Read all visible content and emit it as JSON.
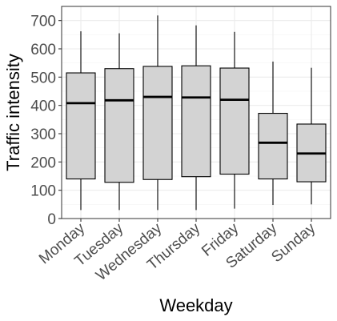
{
  "chart_data": {
    "type": "boxplot",
    "title": "",
    "xlabel": "Weekday",
    "ylabel": "Traffic intensity",
    "ylim": [
      0,
      750
    ],
    "yticks": [
      0,
      100,
      200,
      300,
      400,
      500,
      600,
      700
    ],
    "grid": true,
    "legend": "none",
    "box_fill": "#d3d3d3",
    "line_color": "#000000",
    "categories": [
      "Monday",
      "Tuesday",
      "Wednesday",
      "Thursday",
      "Friday",
      "Saturday",
      "Sunday"
    ],
    "boxes": [
      {
        "category": "Monday",
        "min": 30,
        "q1": 140,
        "median": 408,
        "q3": 515,
        "max": 662
      },
      {
        "category": "Tuesday",
        "min": 30,
        "q1": 128,
        "median": 418,
        "q3": 530,
        "max": 655
      },
      {
        "category": "Wednesday",
        "min": 30,
        "q1": 138,
        "median": 430,
        "q3": 538,
        "max": 718
      },
      {
        "category": "Thursday",
        "min": 30,
        "q1": 148,
        "median": 428,
        "q3": 540,
        "max": 683
      },
      {
        "category": "Friday",
        "min": 35,
        "q1": 157,
        "median": 420,
        "q3": 532,
        "max": 660
      },
      {
        "category": "Saturday",
        "min": 48,
        "q1": 140,
        "median": 268,
        "q3": 372,
        "max": 555
      },
      {
        "category": "Sunday",
        "min": 50,
        "q1": 130,
        "median": 230,
        "q3": 334,
        "max": 533
      }
    ]
  }
}
